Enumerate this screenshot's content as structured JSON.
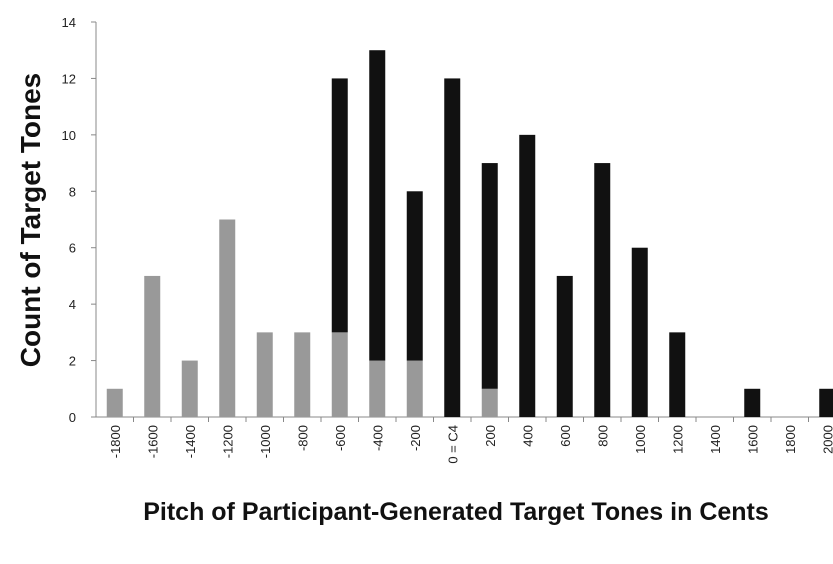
{
  "chart_data": {
    "type": "stacked_bar",
    "y_label": "Count of Target Tones",
    "x_label": "Pitch of Participant-Generated Target Tones in Cents",
    "categories": [
      "-1800",
      "-1600",
      "-1400",
      "-1200",
      "-1000",
      "-800",
      "-600",
      "-400",
      "-200",
      "0 = C4",
      "200",
      "400",
      "600",
      "800",
      "1000",
      "1200",
      "1400",
      "1600",
      "1800",
      "2000"
    ],
    "series": [
      {
        "color": "#999999",
        "values": [
          1,
          5,
          2,
          7,
          3,
          3,
          3,
          2,
          2,
          0,
          1,
          0,
          0,
          0,
          0,
          0,
          0,
          0,
          0,
          0
        ]
      },
      {
        "color": "#111111",
        "values": [
          0,
          0,
          0,
          0,
          0,
          0,
          9,
          11,
          6,
          12,
          8,
          10,
          5,
          9,
          6,
          3,
          0,
          1,
          0,
          1
        ]
      }
    ],
    "ylim": [
      0,
      14
    ],
    "yticks": [
      0,
      2,
      4,
      6,
      8,
      10,
      12,
      14
    ],
    "grid": false
  }
}
